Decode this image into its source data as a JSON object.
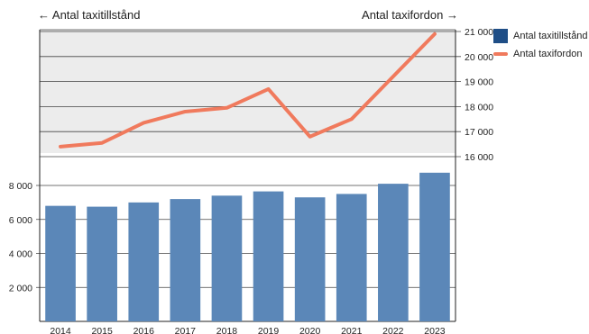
{
  "header": {
    "left_label": "Antal taxitillstånd",
    "right_label": "Antal taxifordon",
    "left_arrow": "←",
    "right_arrow": "→"
  },
  "chart_data": {
    "type": "bar+line",
    "categories": [
      "2014",
      "2015",
      "2016",
      "2017",
      "2018",
      "2019",
      "2020",
      "2021",
      "2022",
      "2023"
    ],
    "series": [
      {
        "name": "Antal taxitillstånd",
        "type": "bar",
        "axis": "left",
        "color": "#5b87b8",
        "values": [
          6800,
          6750,
          7000,
          7200,
          7400,
          7650,
          7300,
          7500,
          8100,
          8750
        ]
      },
      {
        "name": "Antal taxifordon",
        "type": "line",
        "axis": "right",
        "color": "#f07a5d",
        "values": [
          16400,
          16550,
          17350,
          17800,
          17950,
          18700,
          16800,
          17500,
          19200,
          20900
        ]
      }
    ],
    "left_axis": {
      "ticks": [
        "2 000",
        "4 000",
        "6 000",
        "8 000"
      ],
      "tick_values": [
        2000,
        4000,
        6000,
        8000
      ],
      "range": [
        0,
        8000
      ]
    },
    "right_axis": {
      "ticks": [
        "16 000",
        "17 000",
        "18 000",
        "19 000",
        "20 000",
        "21 000"
      ],
      "tick_values": [
        16000,
        17000,
        18000,
        19000,
        20000,
        21000
      ],
      "range": [
        16000,
        21000
      ]
    },
    "grid": true,
    "legend_position": "right",
    "legend_swatch_colors": {
      "bar": "#1f4e86",
      "line": "#f07a5d"
    }
  }
}
